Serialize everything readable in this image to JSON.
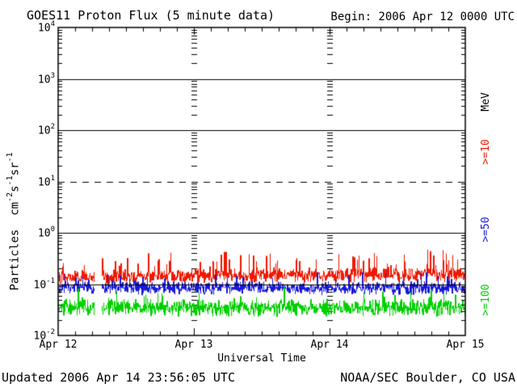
{
  "header": {
    "title": "GOES11 Proton Flux (5 minute data)",
    "begin_label": "Begin: 2006 Apr 12 0000 UTC"
  },
  "footer": {
    "updated": "Updated 2006 Apr 14 23:56:05 UTC",
    "source": "NOAA/SEC Boulder, CO USA"
  },
  "chart_data": {
    "type": "line",
    "title": "GOES11 Proton Flux (5 minute data)",
    "xlabel": "Universal Time",
    "ylabel": "Particles cm-2 s-1 sr-1",
    "ylabel_parts": [
      {
        "text": "Particles  cm"
      },
      {
        "sup": "-2"
      },
      {
        "text": "s"
      },
      {
        "sup": "-1"
      },
      {
        "text": "sr"
      },
      {
        "sup": "-1"
      }
    ],
    "x_axis": {
      "start": "2006 Apr 12 0000 UTC",
      "span_days": 3,
      "tick_labels": [
        "Apr 12",
        "Apr 13",
        "Apr 14",
        "Apr 15"
      ],
      "minor_tick_hours": 3
    },
    "y_axis": {
      "scale": "log",
      "min": 0.01,
      "max": 10000,
      "tick_exponents": [
        4,
        3,
        2,
        1,
        0,
        -1,
        -2
      ],
      "solid_grid_exponents": [
        3,
        2,
        0,
        -1
      ],
      "dashed_grid_exponents": [
        1
      ]
    },
    "cadence_minutes": 5,
    "series": [
      {
        "name": ">=10 MeV",
        "color": "#f01800",
        "approx_flux": {
          "min": 0.09,
          "median": 0.15,
          "max": 0.45
        },
        "log10_baseline": -0.86,
        "log10_spread": 0.16,
        "spike_prob": 0.1,
        "spike_log10": 0.4,
        "trend_log10": 0.05,
        "seed": 101
      },
      {
        "name": ">=50 MeV",
        "color": "#1818d8",
        "approx_flux": {
          "min": 0.04,
          "median": 0.09,
          "max": 0.22
        },
        "log10_baseline": -1.07,
        "log10_spread": 0.15,
        "spike_prob": 0.06,
        "spike_log10": 0.28,
        "trend_log10": 0.0,
        "seed": 202
      },
      {
        "name": ">=100 MeV",
        "color": "#00d000",
        "approx_flux": {
          "min": 0.017,
          "median": 0.035,
          "max": 0.09
        },
        "log10_baseline": -1.46,
        "log10_spread": 0.19,
        "spike_prob": 0.06,
        "spike_log10": 0.3,
        "trend_log10": 0.0,
        "seed": 303
      }
    ],
    "data_gap_fraction": [
      0.089,
      0.107
    ],
    "right_labels": [
      {
        "label": "MeV",
        "color": "#000000",
        "center_y": 126
      },
      {
        "label": ">=10",
        "color": "#f01800",
        "center_y": 188
      },
      {
        "label": ">=50",
        "color": "#1818d8",
        "center_y": 284
      },
      {
        "label": ">=100",
        "color": "#00d000",
        "center_y": 371
      }
    ],
    "legend_position": "right",
    "grid": "horizontal-only"
  }
}
